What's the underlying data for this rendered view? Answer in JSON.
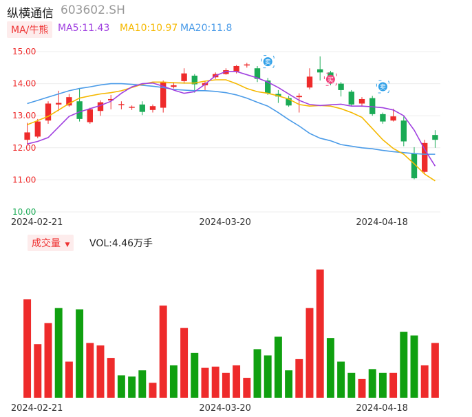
{
  "header": {
    "name": "纵横通信",
    "code": "603602.SH"
  },
  "ma_legend": {
    "tab": "MA/牛熊",
    "ma5": "MA5:11.43",
    "ma10": "MA10:10.97",
    "ma20": "MA20:11.8"
  },
  "volume_legend": {
    "tab": "成交量",
    "tab_arrow": "▼",
    "value": "VOL:4.46万手"
  },
  "colors": {
    "up": "#ee2b2b",
    "down": "#1aaa55",
    "down_vol": "#10a010",
    "ma5": "#a040e0",
    "ma10": "#f5b800",
    "ma20": "#4a9be8",
    "price_axis": "#ee2b2b",
    "price_axis_low": "#1aaa55",
    "signal_buy": "#f0407a",
    "signal_sell": "#30a0e8"
  },
  "chart_data": [
    {
      "type": "candlestick",
      "y_ticks": [
        "15.00",
        "14.00",
        "13.00",
        "12.00",
        "11.00",
        "10.00"
      ],
      "ylim": [
        10.0,
        15.0
      ],
      "x_tick_labels": [
        {
          "label": "2024-02-21",
          "index": 0
        },
        {
          "label": "2024-03-20",
          "index": 18
        },
        {
          "label": "2024-04-18",
          "index": 33
        }
      ],
      "candles": [
        {
          "o": 12.25,
          "c": 12.48,
          "h": 12.78,
          "l": 12.12,
          "dir": "up"
        },
        {
          "o": 12.35,
          "c": 12.82,
          "h": 12.9,
          "l": 12.3,
          "dir": "up"
        },
        {
          "o": 12.85,
          "c": 13.38,
          "h": 13.45,
          "l": 12.75,
          "dir": "up"
        },
        {
          "o": 13.35,
          "c": 13.4,
          "h": 13.78,
          "l": 13.15,
          "dir": "up"
        },
        {
          "o": 13.32,
          "c": 13.58,
          "h": 13.68,
          "l": 13.28,
          "dir": "up"
        },
        {
          "o": 13.45,
          "c": 12.9,
          "h": 13.85,
          "l": 12.82,
          "dir": "down"
        },
        {
          "o": 12.8,
          "c": 13.2,
          "h": 13.25,
          "l": 12.75,
          "dir": "up"
        },
        {
          "o": 13.15,
          "c": 13.42,
          "h": 13.48,
          "l": 13.0,
          "dir": "up"
        },
        {
          "o": 13.48,
          "c": 13.52,
          "h": 13.65,
          "l": 13.2,
          "dir": "up"
        },
        {
          "o": 13.33,
          "c": 13.36,
          "h": 13.45,
          "l": 13.2,
          "dir": "up"
        },
        {
          "o": 13.25,
          "c": 13.28,
          "h": 13.32,
          "l": 13.18,
          "dir": "up"
        },
        {
          "o": 13.35,
          "c": 13.12,
          "h": 13.45,
          "l": 13.02,
          "dir": "down"
        },
        {
          "o": 13.18,
          "c": 13.3,
          "h": 13.35,
          "l": 13.1,
          "dir": "up"
        },
        {
          "o": 13.25,
          "c": 14.05,
          "h": 14.1,
          "l": 13.1,
          "dir": "up"
        },
        {
          "o": 13.9,
          "c": 13.95,
          "h": 14.05,
          "l": 13.85,
          "dir": "up"
        },
        {
          "o": 14.08,
          "c": 14.32,
          "h": 14.48,
          "l": 14.0,
          "dir": "up"
        },
        {
          "o": 14.25,
          "c": 13.98,
          "h": 14.3,
          "l": 13.72,
          "dir": "down"
        },
        {
          "o": 13.95,
          "c": 14.02,
          "h": 14.08,
          "l": 13.8,
          "dir": "up"
        },
        {
          "o": 14.2,
          "c": 14.3,
          "h": 14.35,
          "l": 14.15,
          "dir": "up"
        },
        {
          "o": 14.3,
          "c": 14.42,
          "h": 14.48,
          "l": 14.28,
          "dir": "up"
        },
        {
          "o": 14.38,
          "c": 14.55,
          "h": 14.58,
          "l": 14.32,
          "dir": "up"
        },
        {
          "o": 14.58,
          "c": 14.6,
          "h": 14.65,
          "l": 14.5,
          "dir": "up"
        },
        {
          "o": 14.48,
          "c": 14.15,
          "h": 14.55,
          "l": 14.05,
          "dir": "down"
        },
        {
          "o": 14.1,
          "c": 13.7,
          "h": 14.18,
          "l": 13.65,
          "dir": "down"
        },
        {
          "o": 13.68,
          "c": 13.6,
          "h": 13.8,
          "l": 13.4,
          "dir": "down"
        },
        {
          "o": 13.55,
          "c": 13.32,
          "h": 13.62,
          "l": 13.28,
          "dir": "down"
        },
        {
          "o": 13.58,
          "c": 13.62,
          "h": 13.7,
          "l": 13.1,
          "dir": "up"
        },
        {
          "o": 13.88,
          "c": 14.22,
          "h": 14.48,
          "l": 13.82,
          "dir": "up"
        },
        {
          "o": 14.45,
          "c": 14.35,
          "h": 14.85,
          "l": 14.1,
          "dir": "down"
        },
        {
          "o": 14.35,
          "c": 14.05,
          "h": 14.4,
          "l": 13.95,
          "dir": "down"
        },
        {
          "o": 14.0,
          "c": 13.8,
          "h": 14.05,
          "l": 13.6,
          "dir": "down"
        },
        {
          "o": 13.75,
          "c": 13.35,
          "h": 13.8,
          "l": 13.3,
          "dir": "down"
        },
        {
          "o": 13.38,
          "c": 13.52,
          "h": 13.58,
          "l": 13.28,
          "dir": "up"
        },
        {
          "o": 13.55,
          "c": 13.05,
          "h": 13.62,
          "l": 13.0,
          "dir": "down"
        },
        {
          "o": 13.05,
          "c": 12.82,
          "h": 13.1,
          "l": 12.75,
          "dir": "down"
        },
        {
          "o": 12.85,
          "c": 12.98,
          "h": 13.22,
          "l": 12.82,
          "dir": "up"
        },
        {
          "o": 12.85,
          "c": 12.2,
          "h": 12.98,
          "l": 12.05,
          "dir": "down"
        },
        {
          "o": 11.82,
          "c": 11.05,
          "h": 12.02,
          "l": 11.02,
          "dir": "down"
        },
        {
          "o": 11.25,
          "c": 12.15,
          "h": 12.25,
          "l": 11.2,
          "dir": "up"
        },
        {
          "o": 12.4,
          "c": 12.25,
          "h": 12.55,
          "l": 12.0,
          "dir": "down"
        }
      ],
      "ma5": [
        12.12,
        12.2,
        12.32,
        12.65,
        12.98,
        13.12,
        13.22,
        13.32,
        13.45,
        13.7,
        13.9,
        14.0,
        14.02,
        13.92,
        13.8,
        13.7,
        13.75,
        13.98,
        14.25,
        14.38,
        14.38,
        14.28,
        14.18,
        14.05,
        13.88,
        13.68,
        13.48,
        13.35,
        13.32,
        13.34,
        13.36,
        13.3,
        13.3,
        13.28,
        13.25,
        13.18,
        13.0,
        12.55,
        11.95,
        11.43
      ],
      "ma10": [
        12.72,
        12.85,
        12.98,
        13.18,
        13.38,
        13.55,
        13.62,
        13.68,
        13.72,
        13.78,
        13.88,
        13.98,
        14.05,
        14.05,
        14.03,
        14.02,
        14.02,
        14.08,
        14.12,
        14.12,
        14.0,
        13.85,
        13.75,
        13.7,
        13.62,
        13.52,
        13.35,
        13.3,
        13.32,
        13.3,
        13.22,
        13.1,
        12.95,
        12.6,
        12.25,
        11.98,
        11.8,
        11.5,
        11.18,
        10.97
      ],
      "ma20": [
        13.38,
        13.48,
        13.58,
        13.68,
        13.78,
        13.85,
        13.9,
        13.96,
        14.0,
        14.0,
        13.98,
        13.95,
        13.92,
        13.88,
        13.82,
        13.8,
        13.78,
        13.78,
        13.76,
        13.72,
        13.65,
        13.55,
        13.42,
        13.3,
        13.1,
        12.88,
        12.68,
        12.45,
        12.3,
        12.22,
        12.1,
        12.05,
        12.0,
        11.97,
        11.92,
        11.88,
        11.85,
        11.82,
        11.8,
        11.8
      ],
      "signals": [
        {
          "index": 23,
          "label": "卖",
          "kind": "sell",
          "price": 14.6
        },
        {
          "index": 29,
          "label": "买",
          "kind": "buy",
          "price": 14.05
        },
        {
          "index": 34,
          "label": "卖",
          "kind": "sell",
          "price": 13.82
        }
      ]
    },
    {
      "type": "bar",
      "title": "成交量",
      "x_tick_labels": [
        {
          "label": "2024-02-21",
          "index": 0
        },
        {
          "label": "2024-03-20",
          "index": 18
        },
        {
          "label": "2024-04-18",
          "index": 33
        }
      ],
      "values": [
        7.9,
        4.3,
        6.0,
        7.2,
        2.9,
        7.1,
        4.4,
        4.2,
        3.2,
        1.8,
        1.7,
        2.2,
        1.2,
        7.4,
        2.6,
        5.6,
        3.6,
        2.4,
        2.5,
        2.0,
        2.6,
        1.6,
        3.9,
        3.4,
        4.9,
        2.2,
        3.1,
        7.2,
        10.3,
        4.8,
        2.9,
        2.0,
        1.5,
        2.3,
        2.0,
        2.0,
        5.3,
        5.0,
        2.6,
        4.4
      ],
      "dirs": [
        "up",
        "up",
        "up",
        "down",
        "up",
        "down",
        "up",
        "up",
        "up",
        "down",
        "down",
        "down",
        "up",
        "up",
        "down",
        "up",
        "down",
        "up",
        "up",
        "up",
        "up",
        "up",
        "down",
        "down",
        "down",
        "down",
        "up",
        "up",
        "up",
        "down",
        "down",
        "down",
        "up",
        "down",
        "down",
        "up",
        "down",
        "down",
        "up",
        "up"
      ],
      "ylim": [
        0,
        10.5
      ]
    }
  ]
}
